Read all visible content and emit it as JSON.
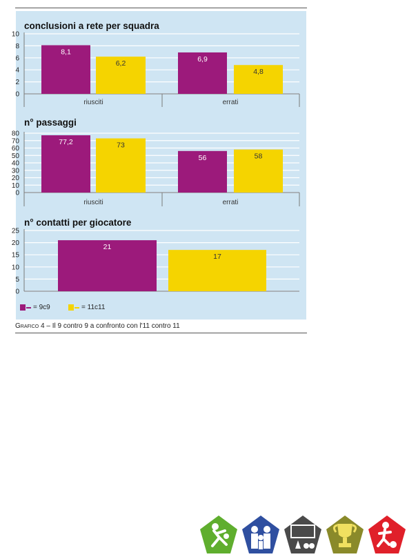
{
  "caption": {
    "label": "Grafico",
    "text": "4 – Il 9 contro 9 a confronto con l'11 contro 11"
  },
  "legend": [
    {
      "name": "= 9c9",
      "color": "#9c1a7b"
    },
    {
      "name": "= 11c11",
      "color": "#f5d400"
    }
  ],
  "colors": {
    "background": "#cfe5f3",
    "grid": "#ffffff",
    "series_9c9": "#9c1a7b",
    "series_11c11": "#f5d400"
  },
  "chart_data": [
    {
      "type": "bar",
      "title": "conclusioni a rete per squadra",
      "categories": [
        "riusciti",
        "errati"
      ],
      "ylim": [
        0,
        10
      ],
      "yticks": [
        0,
        2,
        4,
        6,
        8,
        10
      ],
      "grid": true,
      "series": [
        {
          "name": "9c9",
          "values": [
            8.1,
            6.9
          ],
          "labels": [
            "8,1",
            "6,9"
          ]
        },
        {
          "name": "11c11",
          "values": [
            6.2,
            4.8
          ],
          "labels": [
            "6,2",
            "4,8"
          ]
        }
      ]
    },
    {
      "type": "bar",
      "title": "n° passaggi",
      "categories": [
        "riusciti",
        "errati"
      ],
      "ylim": [
        0,
        80
      ],
      "yticks": [
        0,
        10,
        20,
        30,
        40,
        50,
        60,
        70,
        80
      ],
      "grid": true,
      "series": [
        {
          "name": "9c9",
          "values": [
            77.2,
            56
          ],
          "labels": [
            "77,2",
            "56"
          ]
        },
        {
          "name": "11c11",
          "values": [
            73,
            58
          ],
          "labels": [
            "73",
            "58"
          ]
        }
      ]
    },
    {
      "type": "bar",
      "title": "n° contatti per giocatore",
      "categories": [
        ""
      ],
      "ylim": [
        0,
        25
      ],
      "yticks": [
        0,
        5,
        10,
        15,
        20,
        25
      ],
      "grid": true,
      "series": [
        {
          "name": "9c9",
          "values": [
            21
          ],
          "labels": [
            "21"
          ]
        },
        {
          "name": "11c11",
          "values": [
            17
          ],
          "labels": [
            "17"
          ]
        }
      ]
    }
  ],
  "logos": [
    {
      "icon": "player-kicking-icon",
      "color": "#5fae2e"
    },
    {
      "icon": "family-group-icon",
      "color": "#2f4fa0"
    },
    {
      "icon": "training-cones-icon",
      "color": "#5a5a5a"
    },
    {
      "icon": "trophy-icon",
      "color": "#8a8a2a"
    },
    {
      "icon": "player-with-ball-icon",
      "color": "#e0202a"
    }
  ]
}
